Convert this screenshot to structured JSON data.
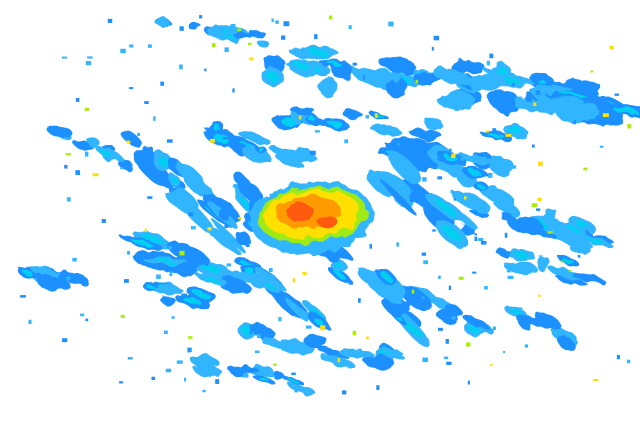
{
  "image": {
    "background": "#ffffff",
    "palette": {
      "weak": "#1e90ff",
      "light": "#33b5ff",
      "moderate": "#00d0f0",
      "green": "#a8f000",
      "yellow": "#ffe000",
      "orange": "#ff9a00",
      "core": "#ff5a10"
    }
  }
}
